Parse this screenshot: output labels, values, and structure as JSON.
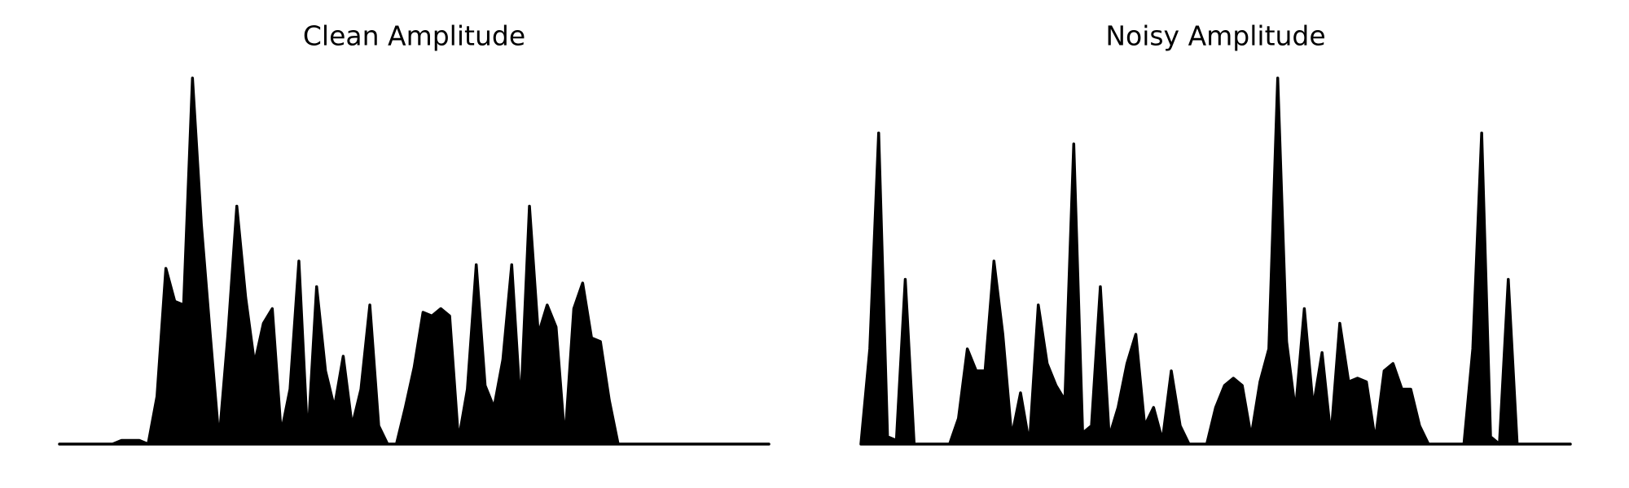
{
  "chart_data": [
    {
      "type": "area",
      "title": "Clean Amplitude",
      "color": "#000000",
      "ylim": [
        0,
        1
      ],
      "values": [
        0,
        0,
        0,
        0,
        0,
        0,
        0,
        0.01,
        0.01,
        0.01,
        0,
        0.13,
        0.48,
        0.39,
        0.38,
        1.0,
        0.6,
        0.3,
        0.01,
        0.3,
        0.65,
        0.4,
        0.22,
        0.33,
        0.37,
        0.03,
        0.15,
        0.5,
        0.01,
        0.43,
        0.2,
        0.1,
        0.24,
        0.05,
        0.15,
        0.38,
        0.05,
        0,
        0,
        0.1,
        0.21,
        0.36,
        0.35,
        0.37,
        0.35,
        0.01,
        0.15,
        0.49,
        0.16,
        0.1,
        0.23,
        0.49,
        0.1,
        0.65,
        0.3,
        0.38,
        0.32,
        0.01,
        0.37,
        0.44,
        0.29,
        0.28,
        0.12,
        0,
        0,
        0,
        0,
        0,
        0,
        0,
        0,
        0,
        0,
        0,
        0,
        0,
        0,
        0,
        0,
        0,
        0
      ]
    },
    {
      "type": "area",
      "title": "Noisy Amplitude",
      "color": "#000000",
      "ylim": [
        0,
        1
      ],
      "values": [
        0,
        0.26,
        0.85,
        0.02,
        0.01,
        0.45,
        0,
        0,
        0,
        0,
        0,
        0.07,
        0.26,
        0.2,
        0.2,
        0.5,
        0.3,
        0.02,
        0.14,
        0,
        0.38,
        0.22,
        0.16,
        0.12,
        0.82,
        0.03,
        0.05,
        0.43,
        0.02,
        0.1,
        0.22,
        0.3,
        0.05,
        0.1,
        0.01,
        0.2,
        0.05,
        0,
        0,
        0,
        0.1,
        0.16,
        0.18,
        0.16,
        0.02,
        0.17,
        0.26,
        1.0,
        0.28,
        0.09,
        0.37,
        0.1,
        0.25,
        0.02,
        0.33,
        0.17,
        0.18,
        0.17,
        0.01,
        0.2,
        0.22,
        0.15,
        0.15,
        0.05,
        0,
        0,
        0,
        0,
        0,
        0.26,
        0.85,
        0.02,
        0,
        0.45,
        0,
        0,
        0,
        0,
        0,
        0,
        0
      ]
    }
  ]
}
